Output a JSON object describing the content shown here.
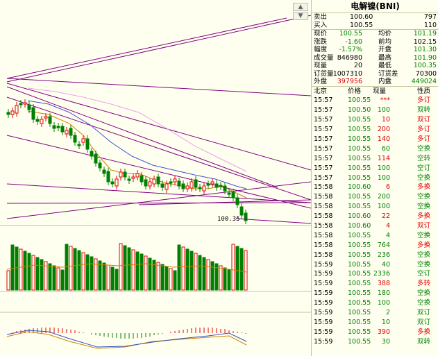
{
  "title": "电解镍(BNI)",
  "sell": {
    "label": "卖出",
    "price": "100.60",
    "qty": "797"
  },
  "buy": {
    "label": "买入",
    "price": "100.55",
    "qty": "110"
  },
  "stats": [
    {
      "l1": "现价",
      "v1": "100.55",
      "c1": "green",
      "l2": "均价",
      "v2": "101.19",
      "c2": "green"
    },
    {
      "l1": "涨跌",
      "v1": "-1.60",
      "c1": "green",
      "l2": "前均",
      "v2": "102.15",
      "c2": "black"
    },
    {
      "l1": "幅度",
      "v1": "-1.57%",
      "c1": "green",
      "l2": "开盘",
      "v2": "101.30",
      "c2": "green"
    },
    {
      "l1": "成交量",
      "v1": "846980",
      "c1": "black",
      "l2": "最高",
      "v2": "101.90",
      "c2": "green"
    },
    {
      "l1": "现量",
      "v1": "20",
      "c1": "black",
      "l2": "最低",
      "v2": "100.35",
      "c2": "green"
    },
    {
      "l1": "订货量",
      "v1": "1007310",
      "c1": "black",
      "l2": "订货差",
      "v2": "70300",
      "c2": "black"
    },
    {
      "l1": "外盘",
      "v1": "397956",
      "c1": "red",
      "l2": "内盘",
      "v2": "449024",
      "c2": "green"
    }
  ],
  "trade_header": {
    "time": "北京",
    "price": "价格",
    "qty": "现量",
    "nature": "性质"
  },
  "trades": [
    {
      "time": "15:57",
      "price": "100.55",
      "qty": "***",
      "nature": "多订",
      "pc": "green",
      "qc": "red",
      "nc": "red"
    },
    {
      "time": "15:57",
      "price": "100.50",
      "qty": "100",
      "nature": "双转",
      "pc": "green",
      "qc": "green",
      "nc": "green"
    },
    {
      "time": "15:57",
      "price": "100.55",
      "qty": "10",
      "nature": "双订",
      "pc": "green",
      "qc": "red",
      "nc": "red"
    },
    {
      "time": "15:57",
      "price": "100.55",
      "qty": "200",
      "nature": "多订",
      "pc": "green",
      "qc": "red",
      "nc": "red"
    },
    {
      "time": "15:57",
      "price": "100.55",
      "qty": "140",
      "nature": "多订",
      "pc": "green",
      "qc": "red",
      "nc": "red"
    },
    {
      "time": "15:57",
      "price": "100.55",
      "qty": "60",
      "nature": "空换",
      "pc": "green",
      "qc": "green",
      "nc": "green"
    },
    {
      "time": "15:57",
      "price": "100.55",
      "qty": "114",
      "nature": "空转",
      "pc": "green",
      "qc": "red",
      "nc": "green"
    },
    {
      "time": "15:57",
      "price": "100.55",
      "qty": "100",
      "nature": "空订",
      "pc": "green",
      "qc": "green",
      "nc": "green"
    },
    {
      "time": "15:57",
      "price": "100.55",
      "qty": "100",
      "nature": "空换",
      "pc": "green",
      "qc": "green",
      "nc": "green"
    },
    {
      "time": "15:58",
      "price": "100.60",
      "qty": "6",
      "nature": "多换",
      "pc": "green",
      "qc": "red",
      "nc": "red"
    },
    {
      "time": "15:58",
      "price": "100.55",
      "qty": "200",
      "nature": "空换",
      "pc": "green",
      "qc": "green",
      "nc": "green"
    },
    {
      "time": "15:58",
      "price": "100.55",
      "qty": "100",
      "nature": "空换",
      "pc": "green",
      "qc": "green",
      "nc": "green"
    },
    {
      "time": "15:58",
      "price": "100.60",
      "qty": "22",
      "nature": "多换",
      "pc": "green",
      "qc": "red",
      "nc": "red"
    },
    {
      "time": "15:58",
      "price": "100.60",
      "qty": "4",
      "nature": "双订",
      "pc": "green",
      "qc": "red",
      "nc": "red"
    },
    {
      "time": "15:58",
      "price": "100.55",
      "qty": "4",
      "nature": "空换",
      "pc": "green",
      "qc": "green",
      "nc": "green"
    },
    {
      "time": "15:58",
      "price": "100.55",
      "qty": "764",
      "nature": "多换",
      "pc": "green",
      "qc": "green",
      "nc": "red"
    },
    {
      "time": "15:58",
      "price": "100.55",
      "qty": "236",
      "nature": "空换",
      "pc": "green",
      "qc": "green",
      "nc": "green"
    },
    {
      "time": "15:59",
      "price": "100.55",
      "qty": "40",
      "nature": "空换",
      "pc": "green",
      "qc": "green",
      "nc": "green"
    },
    {
      "time": "15:59",
      "price": "100.55",
      "qty": "2336",
      "nature": "空订",
      "pc": "green",
      "qc": "green",
      "nc": "green"
    },
    {
      "time": "15:59",
      "price": "100.55",
      "qty": "388",
      "nature": "多转",
      "pc": "green",
      "qc": "red",
      "nc": "red"
    },
    {
      "time": "15:59",
      "price": "100.55",
      "qty": "180",
      "nature": "空换",
      "pc": "green",
      "qc": "green",
      "nc": "green"
    },
    {
      "time": "15:59",
      "price": "100.55",
      "qty": "100",
      "nature": "空换",
      "pc": "green",
      "qc": "green",
      "nc": "green"
    },
    {
      "time": "15:59",
      "price": "100.55",
      "qty": "2",
      "nature": "双订",
      "pc": "green",
      "qc": "green",
      "nc": "green"
    },
    {
      "time": "15:59",
      "price": "100.55",
      "qty": "10",
      "nature": "双订",
      "pc": "green",
      "qc": "green",
      "nc": "green"
    },
    {
      "time": "15:59",
      "price": "100.55",
      "qty": "390",
      "nature": "多换",
      "pc": "green",
      "qc": "red",
      "nc": "red"
    },
    {
      "time": "15:59",
      "price": "100.55",
      "qty": "30",
      "nature": "双转",
      "pc": "green",
      "qc": "green",
      "nc": "green"
    }
  ],
  "chart": {
    "price_label": "100.35",
    "colors": {
      "up": "#e00000",
      "down": "#008000",
      "trend": "#800080",
      "ma1": "#d08000",
      "ma2": "#0000c0",
      "ma3": "#e070e0"
    }
  }
}
